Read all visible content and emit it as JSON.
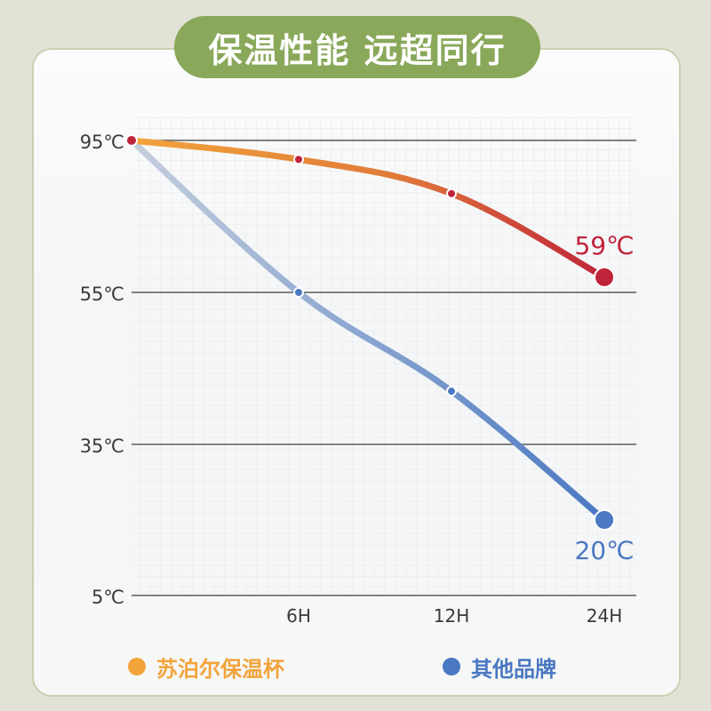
{
  "title": "保温性能 远超同行",
  "colors": {
    "page_bg": "#e3e2d6",
    "title_pill": "#8aa85a",
    "grid_line": "#3d3d3d",
    "ours_start": "#f2a33a",
    "ours_end": "#c0243a",
    "others_start": "#c6cfdd",
    "others_end": "#4a78c2",
    "ours_legend": "#f2a33a",
    "others_legend": "#4a78c2"
  },
  "chart_data": {
    "type": "line",
    "title": "保温性能 远超同行",
    "xlabel": "",
    "ylabel": "",
    "x": [
      "0H",
      "6H",
      "12H",
      "24H"
    ],
    "x_tick_labels": [
      "6H",
      "12H",
      "24H"
    ],
    "y_tick_labels": [
      "95℃",
      "55℃",
      "35℃",
      "5℃"
    ],
    "grid": "horizontal",
    "legend_position": "bottom",
    "series": [
      {
        "name": "苏泊尔保温杯",
        "values": [
          95,
          90,
          81,
          59
        ],
        "end_label": "59℃",
        "color": "#c0243a"
      },
      {
        "name": "其他品牌",
        "values": [
          95,
          55,
          42,
          20
        ],
        "end_label": "20℃",
        "color": "#4a78c2"
      }
    ]
  },
  "legend": {
    "ours_label": "苏泊尔保温杯",
    "others_label": "其他品牌"
  }
}
